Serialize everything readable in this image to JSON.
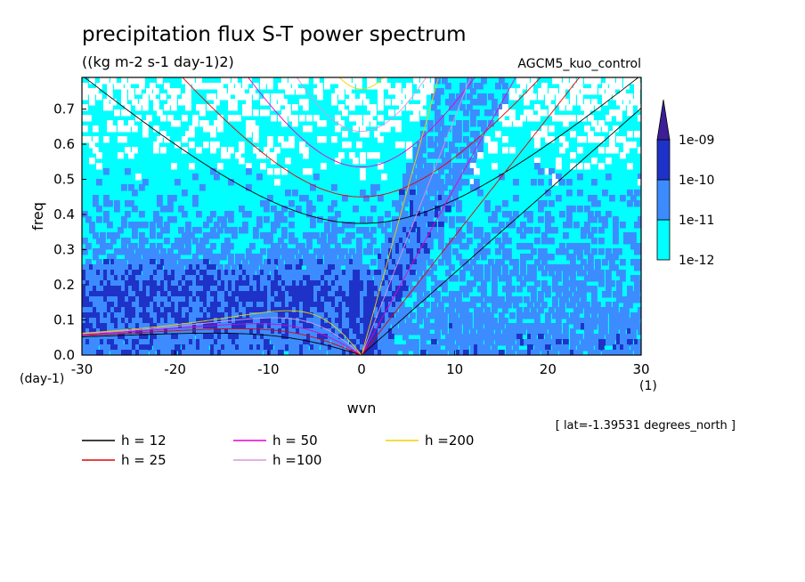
{
  "chart_data": {
    "type": "heatmap",
    "title": "precipitation flux S-T power spectrum",
    "subtitle": "((kg m-2 s-1 day-1)2)",
    "experiment": "AGCM5_kuo_control",
    "xlabel": "wvn",
    "ylabel": "freq",
    "x_unit": "(1)",
    "y_unit": "(day-1)",
    "xlim": [
      -30,
      30
    ],
    "ylim": [
      0,
      0.79
    ],
    "x_ticks": [
      -30,
      -20,
      -10,
      0,
      10,
      20,
      30
    ],
    "x_tick_labels": [
      "-30",
      "-20",
      "-10",
      "0",
      "10",
      "20",
      "30"
    ],
    "y_ticks": [
      0,
      0.1,
      0.2,
      0.3,
      0.4,
      0.5,
      0.6,
      0.7
    ],
    "y_tick_labels": [
      "0.0",
      "0.1",
      "0.2",
      "0.3",
      "0.4",
      "0.5",
      "0.6",
      "0.7"
    ],
    "colorbar": {
      "levels": [
        "1e-12",
        "1e-11",
        "1e-10",
        "1e-09"
      ],
      "colors": [
        "#ffffff",
        "#00ffff",
        "#3c8cff",
        "#1e32c8",
        "#3c1e96"
      ]
    },
    "dispersion_curves": {
      "equivalent_depths_m": [
        12,
        25,
        50,
        100,
        200
      ],
      "legend": [
        {
          "label": "h = 12",
          "h": 12,
          "color": "#000000"
        },
        {
          "label": "h = 25",
          "h": 25,
          "color": "#e60000"
        },
        {
          "label": "h = 50",
          "h": 50,
          "color": "#e600c8"
        },
        {
          "label": "h =100",
          "h": 100,
          "color": "#dc96dc"
        },
        {
          "label": "h =200",
          "h": 200,
          "color": "#f0d200"
        }
      ]
    },
    "footnote": "[ lat=-1.39531 degrees_north ]"
  }
}
